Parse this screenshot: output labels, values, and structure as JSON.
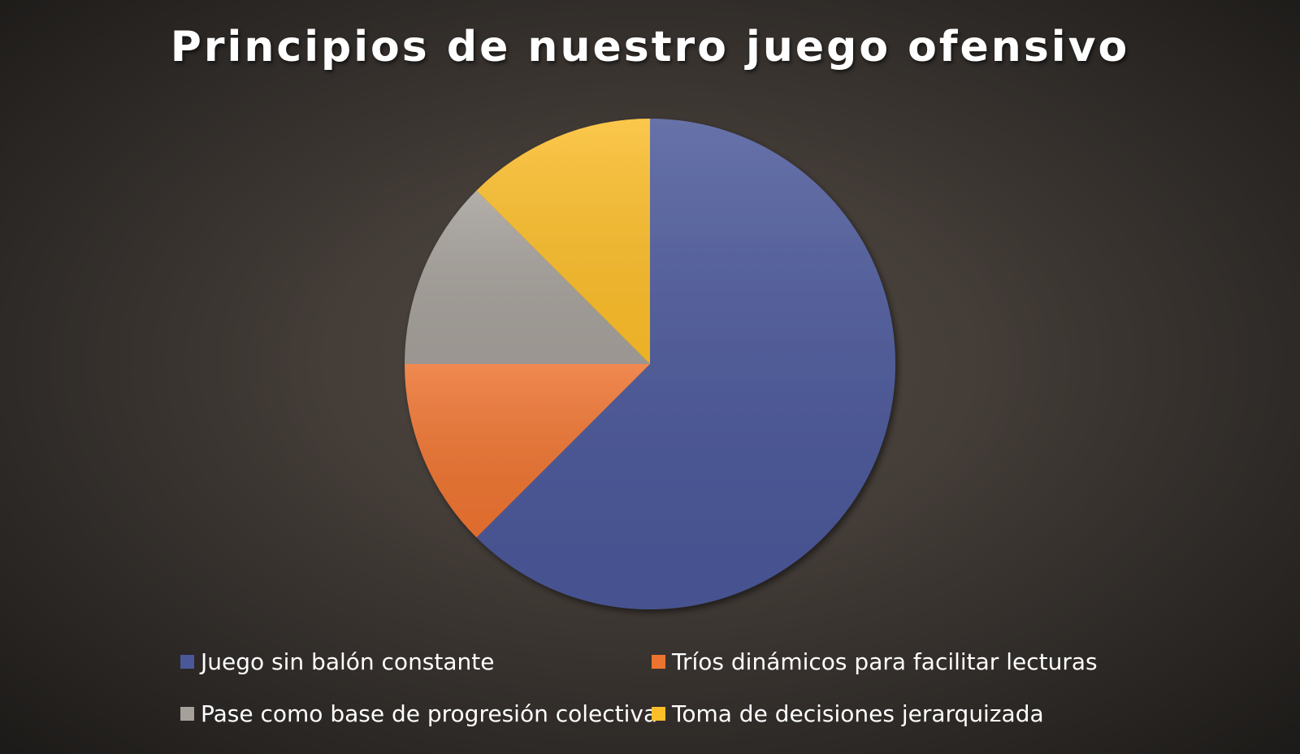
{
  "chart_data": {
    "type": "pie",
    "title": "Principios de nuestro juego ofensivo",
    "categories": [
      "Juego sin balón constante",
      "Tríos dinámicos para facilitar lecturas",
      "Pase como base de progresión colectiva",
      "Toma de decisiones jerarquizada"
    ],
    "values": [
      62.5,
      12.5,
      12.5,
      12.5
    ],
    "colors": [
      "#4a5799",
      "#ed7330",
      "#a5a09a",
      "#fbbd2a"
    ],
    "legend_position": "bottom"
  }
}
